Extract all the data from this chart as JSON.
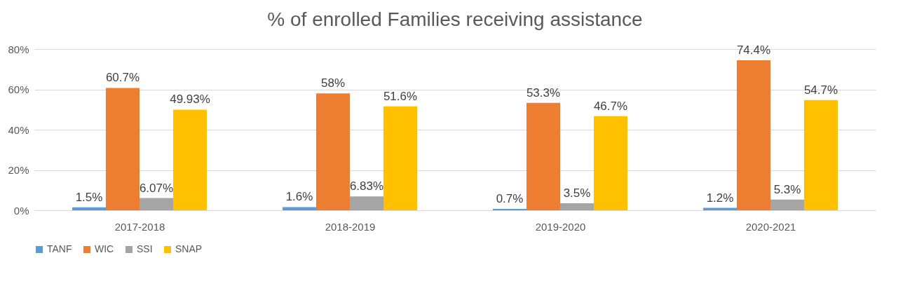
{
  "chart_data": {
    "type": "bar",
    "title": "% of enrolled Families receiving assistance",
    "categories": [
      "2017-2018",
      "2018-2019",
      "2019-2020",
      "2020-2021"
    ],
    "series": [
      {
        "name": "TANF",
        "color": "#5b9bd5",
        "values": [
          1.5,
          1.6,
          0.7,
          1.2
        ],
        "value_labels": [
          "1.5%",
          "1.6%",
          "0.7%",
          "1.2%"
        ]
      },
      {
        "name": "WIC",
        "color": "#ed7d31",
        "values": [
          60.7,
          58,
          53.3,
          74.4
        ],
        "value_labels": [
          "60.7%",
          "58%",
          "53.3%",
          "74.4%"
        ]
      },
      {
        "name": "SSI",
        "color": "#a5a5a5",
        "values": [
          6.07,
          6.83,
          3.5,
          5.3
        ],
        "value_labels": [
          "6.07%",
          "6.83%",
          "3.5%",
          "5.3%"
        ]
      },
      {
        "name": "SNAP",
        "color": "#ffc000",
        "values": [
          49.93,
          51.6,
          46.7,
          54.7
        ],
        "value_labels": [
          "49.93%",
          "51.6%",
          "46.7%",
          "54.7%"
        ]
      }
    ],
    "ylim": [
      0,
      80
    ],
    "yticks": [
      {
        "value": 0,
        "label": "0%"
      },
      {
        "value": 20,
        "label": "20%"
      },
      {
        "value": 40,
        "label": "40%"
      },
      {
        "value": 60,
        "label": "60%"
      },
      {
        "value": 80,
        "label": "80%"
      }
    ],
    "grid": "y",
    "legend": "bottom"
  }
}
